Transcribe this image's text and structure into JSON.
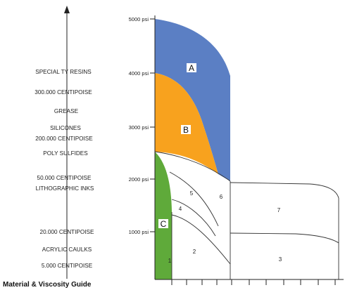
{
  "pressure_axis": {
    "ticks": [
      "5000 psi",
      "4000 psi",
      "3000 psi",
      "2000 psi",
      "1000 psi"
    ]
  },
  "materials": [
    "SPECIAL TY RESINS",
    "300.000 CENTIPOISE",
    "GREASE",
    "SILICONES",
    "200.000 CENTIPOISE",
    "POLY SULFIDES",
    "50.000 CENTIPOISE",
    "LITHOGRAPHIC INKS",
    "20.000 CENTIPOISE",
    "ACRYLIC CAULKS",
    "5.000 CENTIPOISE"
  ],
  "zones": {
    "a": "A",
    "b": "B",
    "c": "C",
    "z1": "1",
    "z2": "2",
    "z3": "3",
    "z4": "4",
    "z5": "5",
    "z6": "6",
    "z7": "7"
  },
  "caption": "Material & Viscosity Guide",
  "colors": {
    "zone_a": "#5b7fc4",
    "zone_b": "#f8a21e",
    "zone_c": "#5faa3a",
    "lines": "#333333"
  }
}
